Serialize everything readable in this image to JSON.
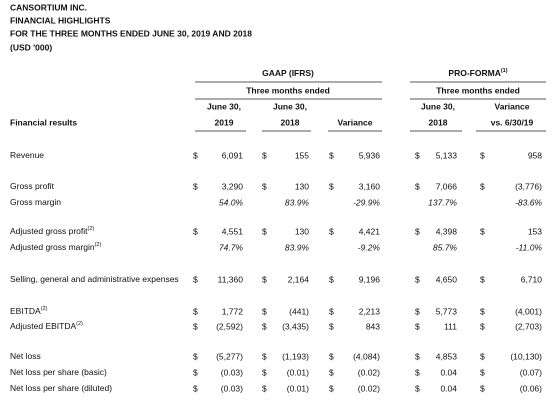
{
  "header": {
    "company": "CANSORTIUM INC.",
    "title": "FINANCIAL HIGHLIGHTS",
    "period": "FOR THE THREE MONTHS ENDED JUNE 30, 2019 AND 2018",
    "units": "(USD '000)"
  },
  "table": {
    "row_header": "Financial results",
    "currency": "$",
    "groups": [
      {
        "label": "GAAP (IFRS)",
        "sublabel": "Three months ended"
      },
      {
        "label": "PRO-FORMA",
        "note": "(1)",
        "sublabel": "Three months ended"
      }
    ],
    "columns": [
      [
        "June 30,",
        "2019"
      ],
      [
        "June 30,",
        "2018"
      ],
      [
        "Variance"
      ],
      [
        "June 30,",
        "2018"
      ],
      [
        "Variance",
        "vs. 6/30/19"
      ]
    ],
    "rows": [
      {
        "label": "Revenue",
        "kind": "amount",
        "values": [
          "6,091",
          "155",
          "5,936",
          "5,133",
          "958"
        ]
      },
      {
        "label": "Gross profit",
        "kind": "amount",
        "values": [
          "3,290",
          "130",
          "3,160",
          "7,066",
          "(3,776)"
        ]
      },
      {
        "label": "Gross margin",
        "kind": "percent",
        "values": [
          "54.0%",
          "83.9%",
          "-29.9%",
          "137.7%",
          "-83.6%"
        ]
      },
      {
        "label": "Adjusted gross profit",
        "note": "(2)",
        "kind": "amount",
        "values": [
          "4,551",
          "130",
          "4,421",
          "4,398",
          "153"
        ]
      },
      {
        "label": "Adjusted gross margin",
        "note": "(2)",
        "kind": "percent",
        "values": [
          "74.7%",
          "83.9%",
          "-9.2%",
          "85.7%",
          "-11.0%"
        ]
      },
      {
        "label": "Selling, general and administrative expenses",
        "kind": "amount",
        "values": [
          "11,360",
          "2,164",
          "9,196",
          "4,650",
          "6,710"
        ]
      },
      {
        "label": "EBITDA",
        "note": "(2)",
        "kind": "amount",
        "values": [
          "1,772",
          "(441)",
          "2,213",
          "5,773",
          "(4,001)"
        ]
      },
      {
        "label": "Adjusted EBITDA",
        "note": "(2)",
        "kind": "amount",
        "values": [
          "(2,592)",
          "(3,435)",
          "843",
          "111",
          "(2,703)"
        ]
      },
      {
        "label": "Net loss",
        "kind": "amount",
        "values": [
          "(5,277)",
          "(1,193)",
          "(4,084)",
          "4,853",
          "(10,130)"
        ]
      },
      {
        "label": "Net loss per share (basic)",
        "kind": "amount",
        "values": [
          "(0.03)",
          "(0.01)",
          "(0.02)",
          "0.04",
          "(0.07)"
        ]
      },
      {
        "label": "Net loss per share (diluted)",
        "kind": "amount",
        "values": [
          "(0.03)",
          "(0.01)",
          "(0.02)",
          "0.04",
          "(0.06)"
        ]
      }
    ]
  }
}
